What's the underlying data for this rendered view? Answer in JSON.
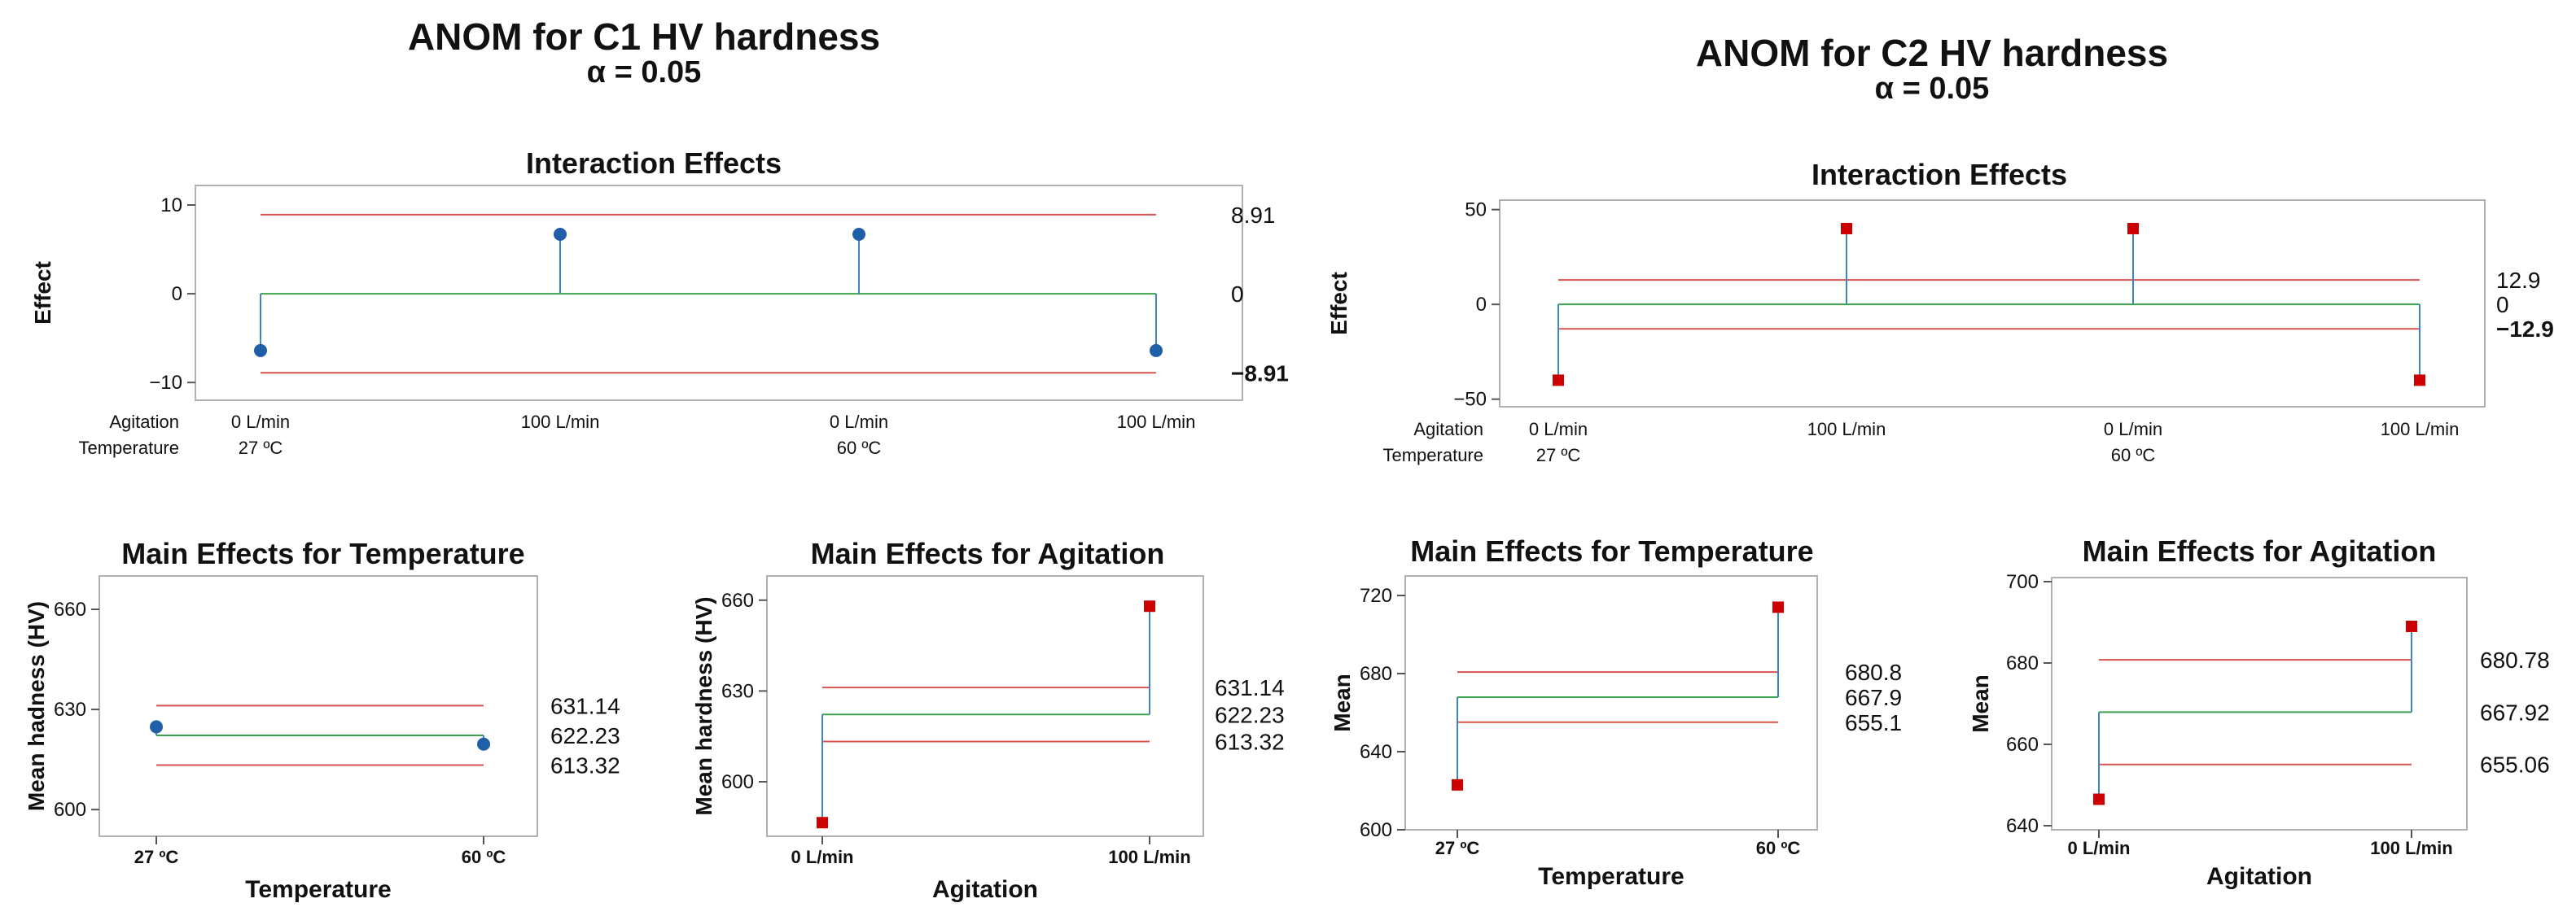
{
  "colors": {
    "stem": "#3d86c6",
    "center": "#3da34d",
    "limit": "#d9534f",
    "blue_marker": "#1f5fa8",
    "red_marker": "#cc0000",
    "frame": "#b0b0b0"
  },
  "chart_data": [
    {
      "panel": "left",
      "title": "ANOM for C1 HV hardness",
      "subtitle": "α = 0.05",
      "charts": [
        {
          "type": "scatter",
          "title": "Interaction Effects",
          "ylabel": "Effect",
          "ylim": [
            -12,
            12.2
          ],
          "yticks": [
            "10",
            "0",
            "−10"
          ],
          "ytick_values": [
            10,
            0,
            -10
          ],
          "center": 0,
          "udl": 8.91,
          "ldl": -8.91,
          "limit_labels": [
            "8.91",
            "0",
            "−8.91"
          ],
          "values": [
            -6.4,
            6.7,
            6.7,
            -6.4
          ],
          "marker": "circle",
          "factor_rows": [
            {
              "name": "Agitation",
              "labels": [
                "0 L/min",
                "100 L/min",
                "0 L/min",
                "100 L/min"
              ]
            },
            {
              "name": "Temperature",
              "labels": [
                "27 ºC",
                "",
                "60 ºC",
                ""
              ]
            }
          ]
        },
        {
          "type": "scatter",
          "title": "Main Effects for Temperature",
          "xlabel": "Temperature",
          "ylabel": "Mean hadness (HV)",
          "ylim": [
            592,
            670
          ],
          "yticks": [
            "660",
            "630",
            "600"
          ],
          "ytick_values": [
            660,
            630,
            600
          ],
          "categories": [
            "27 ºC",
            "60 ºC"
          ],
          "values": [
            624.8,
            619.6
          ],
          "center": 622.23,
          "udl": 631.14,
          "ldl": 613.32,
          "limit_labels": [
            "631.14",
            "622.23",
            "613.32"
          ],
          "marker": "circle"
        },
        {
          "type": "scatter",
          "title": "Main Effects for Agitation",
          "xlabel": "Agitation",
          "ylabel": "Mean hardness (HV)",
          "ylim": [
            582,
            668
          ],
          "yticks": [
            "660",
            "630",
            "600"
          ],
          "ytick_values": [
            660,
            630,
            600
          ],
          "categories": [
            "0 L/min",
            "100 L/min"
          ],
          "values": [
            586.5,
            658
          ],
          "center": 622.23,
          "udl": 631.14,
          "ldl": 613.32,
          "limit_labels": [
            "631.14",
            "622.23",
            "613.32"
          ],
          "marker": "square"
        }
      ]
    },
    {
      "panel": "right",
      "title": "ANOM for C2 HV hardness",
      "subtitle": "α = 0.05",
      "charts": [
        {
          "type": "scatter",
          "title": "Interaction Effects",
          "ylabel": "Effect",
          "ylim": [
            -54,
            55
          ],
          "yticks": [
            "50",
            "0",
            "−50"
          ],
          "ytick_values": [
            50,
            0,
            -50
          ],
          "center": 0,
          "udl": 12.9,
          "ldl": -12.9,
          "limit_labels": [
            "12.9",
            "0",
            "−12.9"
          ],
          "values": [
            -40,
            40,
            40,
            -40
          ],
          "marker": "square",
          "factor_rows": [
            {
              "name": "Agitation",
              "labels": [
                "0 L/min",
                "100 L/min",
                "0 L/min",
                "100 L/min"
              ]
            },
            {
              "name": "Temperature",
              "labels": [
                "27 ºC",
                "",
                "60 ºC",
                ""
              ]
            }
          ]
        },
        {
          "type": "scatter",
          "title": "Main Effects for Temperature",
          "xlabel": "Temperature",
          "ylabel": "Mean",
          "ylim": [
            600,
            730
          ],
          "yticks": [
            "720",
            "680",
            "640",
            "600"
          ],
          "ytick_values": [
            720,
            680,
            640,
            600
          ],
          "categories": [
            "27 ºC",
            "60 ºC"
          ],
          "values": [
            623,
            714
          ],
          "center": 667.9,
          "udl": 680.8,
          "ldl": 655.1,
          "limit_labels": [
            "680.8",
            "667.9",
            "655.1"
          ],
          "marker": "square"
        },
        {
          "type": "scatter",
          "title": "Main Effects for Agitation",
          "xlabel": "Agitation",
          "ylabel": "Mean",
          "ylim": [
            639,
            701
          ],
          "yticks": [
            "700",
            "680",
            "660",
            "640"
          ],
          "ytick_values": [
            700,
            680,
            660,
            640
          ],
          "categories": [
            "0 L/min",
            "100 L/min"
          ],
          "values": [
            646.5,
            689
          ],
          "center": 667.92,
          "udl": 680.78,
          "ldl": 655.06,
          "limit_labels": [
            "680.78",
            "667.92",
            "655.06"
          ],
          "marker": "square"
        }
      ]
    }
  ]
}
